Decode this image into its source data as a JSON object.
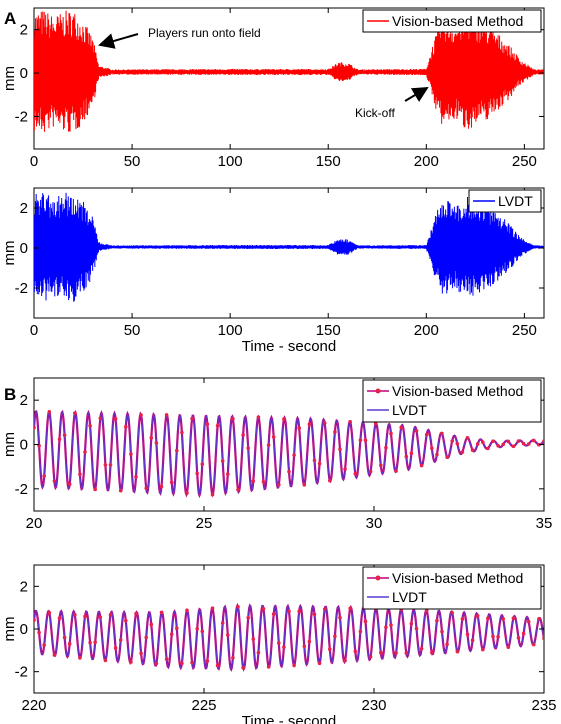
{
  "colors": {
    "vision_A": "#ff0000",
    "lvdt_A": "#0000ff",
    "vision_B": "#c0007a",
    "vision_B_marker": "#e8204a",
    "lvdt_B": "#5a3ad0"
  },
  "chart_data": [
    {
      "panel_label": "A",
      "type": "line",
      "ylabel": "mm",
      "xlabel": "",
      "xlim": [
        0,
        260
      ],
      "ylim": [
        -3.5,
        3
      ],
      "xticks": [
        "0",
        "50",
        "100",
        "150",
        "200",
        "250"
      ],
      "yticks": [
        "2",
        "0",
        "-2"
      ],
      "grid": false,
      "legend_position": "top-right",
      "series": [
        {
          "name": "Vision-based Method",
          "color": "#ff0000",
          "envelope": [
            [
              0,
              2.8
            ],
            [
              5,
              2.9
            ],
            [
              10,
              2.6
            ],
            [
              15,
              2.8
            ],
            [
              20,
              2.9
            ],
            [
              25,
              2.4
            ],
            [
              30,
              1.6
            ],
            [
              33,
              0.3
            ],
            [
              40,
              0.12
            ],
            [
              100,
              0.14
            ],
            [
              150,
              0.14
            ],
            [
              155,
              0.45
            ],
            [
              160,
              0.45
            ],
            [
              165,
              0.12
            ],
            [
              200,
              0.15
            ],
            [
              203,
              1.2
            ],
            [
              208,
              2.6
            ],
            [
              215,
              2.2
            ],
            [
              220,
              2.7
            ],
            [
              230,
              2.3
            ],
            [
              240,
              1.5
            ],
            [
              248,
              0.6
            ],
            [
              255,
              0.12
            ],
            [
              260,
              0.12
            ]
          ]
        }
      ],
      "annotations": [
        "Players run onto field",
        "Kick-off"
      ]
    },
    {
      "type": "line",
      "ylabel": "mm",
      "xlabel": "Time - second",
      "xlim": [
        0,
        260
      ],
      "ylim": [
        -3.5,
        3
      ],
      "xticks": [
        "0",
        "50",
        "100",
        "150",
        "200",
        "250"
      ],
      "yticks": [
        "2",
        "0",
        "-2"
      ],
      "grid": false,
      "legend_position": "top-right",
      "series": [
        {
          "name": "LVDT",
          "color": "#0000ff",
          "envelope": [
            [
              0,
              2.7
            ],
            [
              5,
              2.8
            ],
            [
              10,
              2.5
            ],
            [
              15,
              2.7
            ],
            [
              20,
              2.8
            ],
            [
              25,
              2.3
            ],
            [
              30,
              1.5
            ],
            [
              33,
              0.25
            ],
            [
              40,
              0.08
            ],
            [
              100,
              0.1
            ],
            [
              150,
              0.1
            ],
            [
              155,
              0.4
            ],
            [
              160,
              0.4
            ],
            [
              165,
              0.08
            ],
            [
              200,
              0.1
            ],
            [
              203,
              1.1
            ],
            [
              208,
              2.5
            ],
            [
              215,
              2.1
            ],
            [
              220,
              2.6
            ],
            [
              230,
              2.2
            ],
            [
              240,
              1.4
            ],
            [
              248,
              0.5
            ],
            [
              255,
              0.08
            ],
            [
              260,
              0.08
            ]
          ]
        }
      ]
    },
    {
      "panel_label": "B",
      "type": "line",
      "ylabel": "mm",
      "xlabel": "",
      "xlim": [
        20,
        35
      ],
      "ylim": [
        -3,
        3
      ],
      "xticks": [
        "20",
        "25",
        "30",
        "35"
      ],
      "yticks": [
        "2",
        "0",
        "-2"
      ],
      "grid": false,
      "legend_position": "top-right",
      "frequency_hz": 2.6,
      "offset": [
        [
          20,
          -0.2
        ],
        [
          25,
          -0.5
        ],
        [
          30,
          -0.2
        ],
        [
          35,
          0.1
        ]
      ],
      "amplitude": [
        [
          20,
          1.7
        ],
        [
          25,
          1.8
        ],
        [
          28,
          1.5
        ],
        [
          31,
          1.0
        ],
        [
          32.5,
          0.4
        ],
        [
          33.5,
          0.15
        ],
        [
          35,
          0.1
        ]
      ],
      "series": [
        {
          "name": "Vision-based Method",
          "color": "#c0007a"
        },
        {
          "name": "LVDT",
          "color": "#5a3ad0"
        }
      ]
    },
    {
      "type": "line",
      "ylabel": "mm",
      "xlabel": "Time - second",
      "xlim": [
        220,
        235
      ],
      "ylim": [
        -3,
        3
      ],
      "xticks": [
        "220",
        "225",
        "230",
        "235"
      ],
      "yticks": [
        "2",
        "0",
        "-2"
      ],
      "grid": false,
      "legend_position": "top-right",
      "frequency_hz": 2.7,
      "offset": [
        [
          220,
          -0.15
        ],
        [
          224,
          -0.5
        ],
        [
          228,
          -0.3
        ],
        [
          232,
          -0.15
        ],
        [
          235,
          -0.1
        ]
      ],
      "amplitude": [
        [
          220,
          1.0
        ],
        [
          223,
          1.2
        ],
        [
          226,
          1.5
        ],
        [
          229,
          1.3
        ],
        [
          232,
          1.0
        ],
        [
          235,
          0.6
        ]
      ],
      "series": [
        {
          "name": "Vision-based Method",
          "color": "#c0007a"
        },
        {
          "name": "LVDT",
          "color": "#5a3ad0"
        }
      ]
    }
  ]
}
